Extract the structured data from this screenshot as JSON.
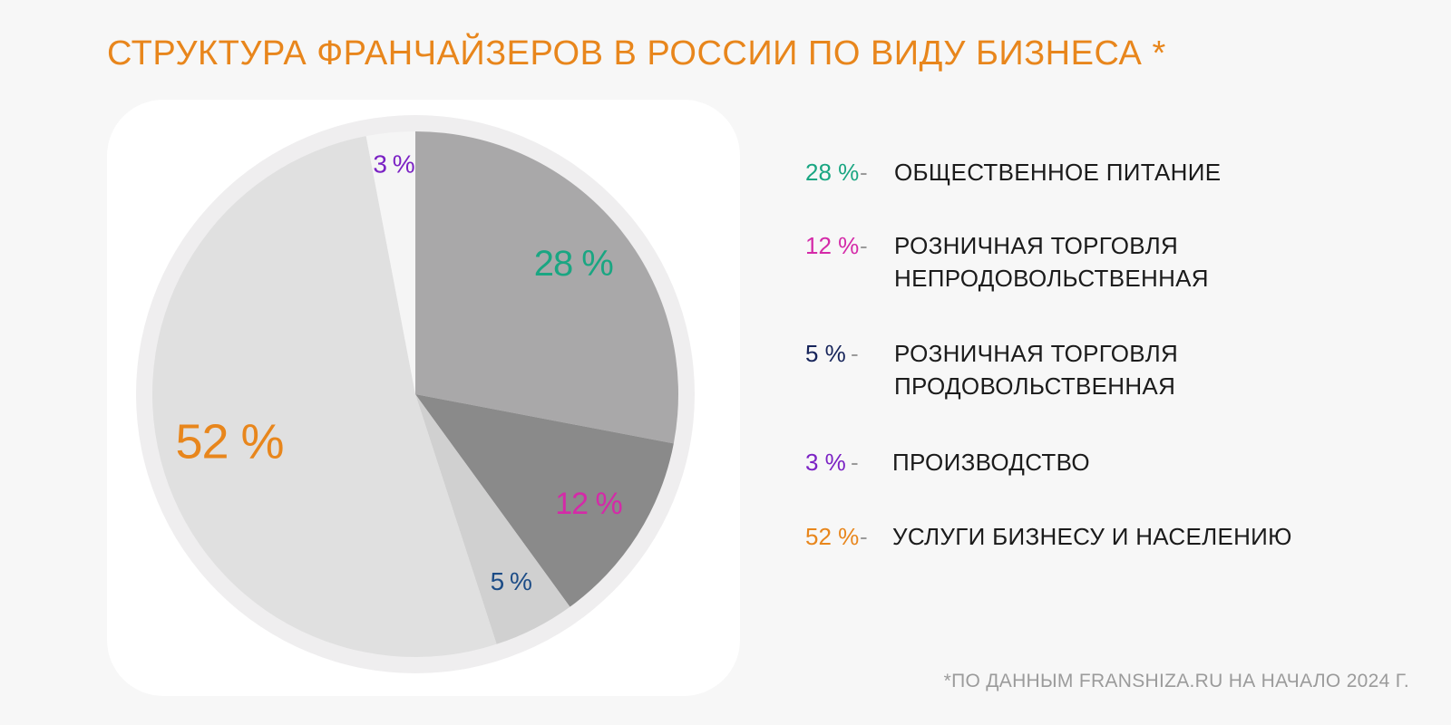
{
  "header": {
    "title": "СТРУКТУРА ФРАНЧАЙЗЕРОВ В РОССИИ ПО ВИДУ БИЗНЕСА *"
  },
  "chart_data": {
    "type": "pie",
    "title": "СТРУКТУРА ФРАНЧАЙЗЕРОВ В РОССИИ ПО ВИДУ БИЗНЕСА *",
    "slices": [
      {
        "label": "ОБЩЕСТВЕННОЕ ПИТАНИЕ",
        "value": 28,
        "value_label": "28 %",
        "fill": "#a9a8a9",
        "label_color": "#1aa682"
      },
      {
        "label": "РОЗНИЧНАЯ ТОРГОВЛЯ НЕПРОДОВОЛЬСТВЕННАЯ",
        "value": 12,
        "value_label": "12 %",
        "fill": "#8a8a8a",
        "label_color": "#d42aa8"
      },
      {
        "label": "РОЗНИЧНАЯ ТОРГОВЛЯ ПРОДОВОЛЬСТВЕННАЯ",
        "value": 5,
        "value_label": "5 %",
        "fill": "#d0d0d0",
        "label_color": "#1c4c86"
      },
      {
        "label": "УСЛУГИ БИЗНЕСУ И НАСЕЛЕНИЮ",
        "value": 52,
        "value_label": "52 %",
        "fill": "#e0e0e0",
        "label_color": "#e8861c"
      },
      {
        "label": "ПРОИЗВОДСТВО",
        "value": 3,
        "value_label": "3 %",
        "fill": "#f5f5f5",
        "label_color": "#7b22c4"
      }
    ],
    "start_angle_deg": 0,
    "direction": "clockwise",
    "ring_color": "#efeeef"
  },
  "legend": {
    "separator": "-",
    "items": [
      {
        "pct": "28 %",
        "label_line1": "ОБЩЕСТВЕННОЕ ПИТАНИЕ",
        "label_line2": "",
        "color": "#1aa682"
      },
      {
        "pct": "12 %",
        "label_line1": "РОЗНИЧНАЯ ТОРГОВЛЯ",
        "label_line2": "НЕПРОДОВОЛЬСТВЕННАЯ",
        "color": "#d42aa8"
      },
      {
        "pct": "5 %",
        "label_line1": "РОЗНИЧНАЯ ТОРГОВЛЯ",
        "label_line2": "ПРОДОВОЛЬСТВЕННАЯ",
        "color": "#16245a"
      },
      {
        "pct": "3 %",
        "label_line1": "ПРОИЗВОДСТВО",
        "label_line2": "",
        "color": "#7b22c4"
      },
      {
        "pct": "52 %",
        "label_line1": "УСЛУГИ БИЗНЕСУ И НАСЕЛЕНИЮ",
        "label_line2": "",
        "color": "#e8861c"
      }
    ]
  },
  "footnote": "*ПО ДАННЫМ FRANSHIZA.RU НА НАЧАЛО 2024 Г."
}
